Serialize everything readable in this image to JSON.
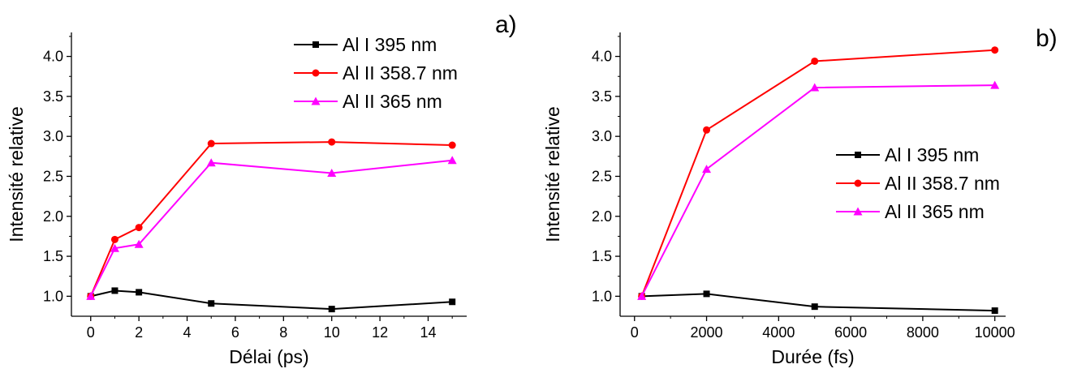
{
  "chart_data": [
    {
      "type": "line",
      "panel_label": "a)",
      "xlabel": "Délai (ps)",
      "ylabel": "Intensité relative",
      "xlim": [
        -0.8,
        15.6
      ],
      "ylim": [
        0.75,
        4.3
      ],
      "x_ticks": [
        0,
        2,
        4,
        6,
        8,
        10,
        12,
        14
      ],
      "x_tick_labels": [
        "0",
        "2",
        "4",
        "6",
        "8",
        "10",
        "12",
        "14"
      ],
      "y_ticks": [
        1.0,
        1.5,
        2.0,
        2.5,
        3.0,
        3.5,
        4.0
      ],
      "y_tick_labels": [
        "1.0",
        "1.5",
        "2.0",
        "2.5",
        "3.0",
        "3.5",
        "4.0"
      ],
      "legend_position": "top-right",
      "series": [
        {
          "name": "Al I 395 nm",
          "color": "#000000",
          "marker": "square",
          "x": [
            0,
            1,
            2,
            5,
            10,
            15
          ],
          "y": [
            1.0,
            1.07,
            1.05,
            0.91,
            0.84,
            0.93
          ]
        },
        {
          "name": "Al II 358.7 nm",
          "color": "#ff0000",
          "marker": "circle",
          "x": [
            0,
            1,
            2,
            5,
            10,
            15
          ],
          "y": [
            1.0,
            1.71,
            1.86,
            2.91,
            2.93,
            2.89
          ]
        },
        {
          "name": "Al II 365 nm",
          "color": "#ff00ff",
          "marker": "triangle",
          "x": [
            0,
            1,
            2,
            5,
            10,
            15
          ],
          "y": [
            1.0,
            1.6,
            1.65,
            2.67,
            2.54,
            2.7
          ]
        }
      ]
    },
    {
      "type": "line",
      "panel_label": "b)",
      "xlabel": "Durée (fs)",
      "ylabel": "Intensité relative",
      "xlim": [
        -400,
        10300
      ],
      "ylim": [
        0.75,
        4.3
      ],
      "x_ticks": [
        0,
        2000,
        4000,
        6000,
        8000,
        10000
      ],
      "x_tick_labels": [
        "0",
        "2000",
        "4000",
        "6000",
        "8000",
        "10000"
      ],
      "y_ticks": [
        1.0,
        1.5,
        2.0,
        2.5,
        3.0,
        3.5,
        4.0
      ],
      "y_tick_labels": [
        "1.0",
        "1.5",
        "2.0",
        "2.5",
        "3.0",
        "3.5",
        "4.0"
      ],
      "legend_position": "center-right",
      "series": [
        {
          "name": "Al I 395 nm",
          "color": "#000000",
          "marker": "square",
          "x": [
            200,
            2000,
            5000,
            10000
          ],
          "y": [
            1.0,
            1.03,
            0.87,
            0.82
          ]
        },
        {
          "name": "Al II 358.7 nm",
          "color": "#ff0000",
          "marker": "circle",
          "x": [
            200,
            2000,
            5000,
            10000
          ],
          "y": [
            1.0,
            3.08,
            3.94,
            4.08
          ]
        },
        {
          "name": "Al II 365 nm",
          "color": "#ff00ff",
          "marker": "triangle",
          "x": [
            200,
            2000,
            5000,
            10000
          ],
          "y": [
            1.0,
            2.59,
            3.61,
            3.64
          ]
        }
      ]
    }
  ]
}
